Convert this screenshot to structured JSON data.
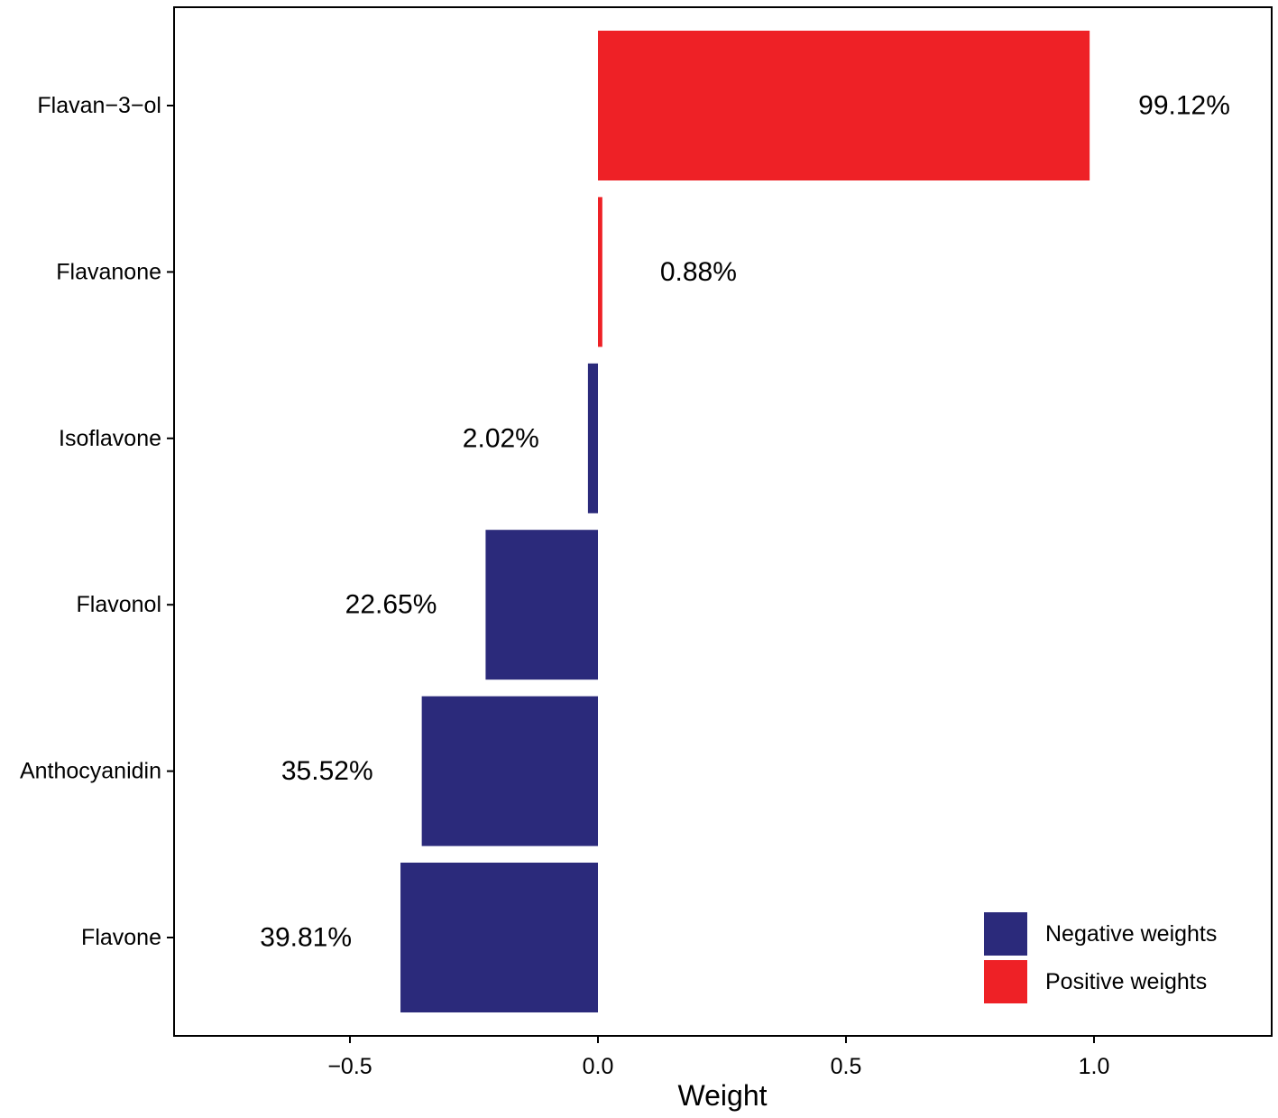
{
  "chart_data": {
    "type": "bar",
    "orientation": "horizontal",
    "title": "",
    "xlabel": "Weight",
    "ylabel": "",
    "xlim": [
      -0.85,
      1.35
    ],
    "x_ticks": [
      -0.5,
      0.0,
      0.5,
      1.0
    ],
    "x_tick_labels": [
      "−0.5",
      "0.0",
      "0.5",
      "1.0"
    ],
    "grid": false,
    "categories": [
      "Flavan−3−ol",
      "Flavanone",
      "Isoflavone",
      "Flavonol",
      "Anthocyanidin",
      "Flavone"
    ],
    "values": [
      0.9912,
      0.0088,
      -0.0202,
      -0.2265,
      -0.3552,
      -0.3981
    ],
    "labels": [
      "99.12%",
      "0.88%",
      "2.02%",
      "22.65%",
      "35.52%",
      "39.81%"
    ],
    "colors": {
      "negative": "#2b2a7b",
      "positive": "#ee2126"
    },
    "legend": {
      "position": "bottom-right",
      "items": [
        {
          "label": "Negative weights",
          "key": "negative"
        },
        {
          "label": "Positive weights",
          "key": "positive"
        }
      ]
    }
  }
}
